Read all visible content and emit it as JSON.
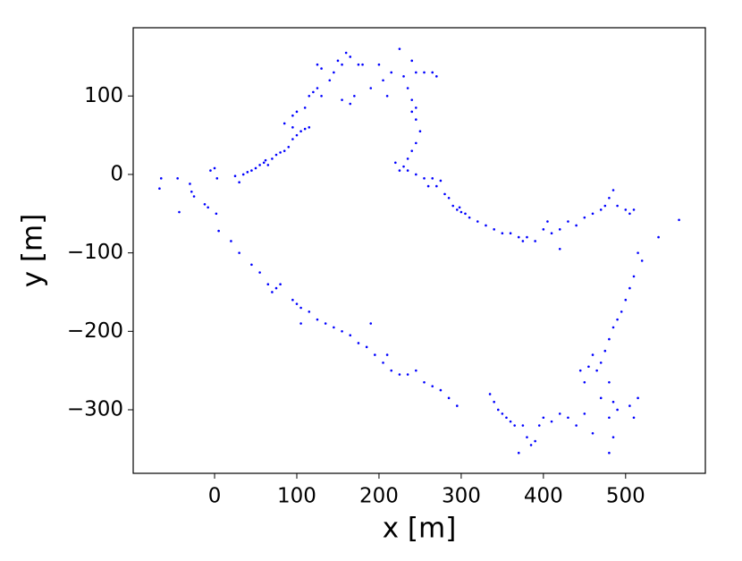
{
  "chart_data": {
    "type": "scatter",
    "x_label": "x [m]",
    "y_label": "y [m]",
    "xlim": [
      -99,
      597
    ],
    "ylim": [
      -381,
      187
    ],
    "xticks": [
      0,
      100,
      200,
      300,
      400,
      500
    ],
    "yticks": [
      {
        "value": -300,
        "label": "−300"
      },
      {
        "value": -200,
        "label": "−200"
      },
      {
        "value": -100,
        "label": "−100"
      },
      0,
      100
    ],
    "color": "#0000ff",
    "x": [
      -67,
      -65,
      -45,
      -43,
      -30,
      -28,
      -25,
      -12,
      -8,
      -5,
      2,
      5,
      3,
      0,
      25,
      30,
      35,
      40,
      45,
      50,
      55,
      60,
      62,
      65,
      70,
      75,
      80,
      85,
      90,
      95,
      100,
      105,
      110,
      115,
      95,
      85,
      95,
      100,
      110,
      115,
      120,
      125,
      130,
      125,
      130,
      140,
      145,
      150,
      155,
      160,
      165,
      170,
      165,
      155,
      175,
      180,
      190,
      200,
      205,
      210,
      215,
      225,
      230,
      235,
      240,
      245,
      255,
      265,
      270,
      240,
      245,
      240,
      245,
      250,
      245,
      240,
      235,
      230,
      220,
      225,
      235,
      245,
      255,
      260,
      265,
      270,
      275,
      280,
      285,
      290,
      295,
      298,
      300,
      305,
      310,
      320,
      330,
      340,
      350,
      360,
      370,
      375,
      380,
      390,
      400,
      405,
      410,
      420,
      420,
      430,
      440,
      450,
      460,
      470,
      475,
      480,
      485,
      490,
      500,
      505,
      510,
      540,
      565,
      520,
      515,
      510,
      505,
      500,
      495,
      490,
      485,
      480,
      475,
      470,
      465,
      460,
      455,
      450,
      445,
      480,
      485,
      490,
      480,
      485,
      480,
      510,
      515,
      505,
      470,
      460,
      450,
      440,
      430,
      420,
      410,
      400,
      395,
      390,
      385,
      380,
      375,
      370,
      365,
      360,
      355,
      350,
      345,
      340,
      335,
      20,
      30,
      45,
      55,
      65,
      70,
      75,
      80,
      95,
      100,
      105,
      115,
      125,
      135,
      145,
      155,
      165,
      175,
      185,
      195,
      205,
      215,
      225,
      235,
      245,
      255,
      265,
      275,
      285,
      295,
      190,
      105,
      210
    ],
    "y": [
      -18,
      -5,
      -5,
      -48,
      -12,
      -22,
      -28,
      -38,
      -42,
      5,
      -50,
      -72,
      -5,
      8,
      -2,
      -10,
      0,
      3,
      5,
      8,
      12,
      15,
      18,
      12,
      20,
      25,
      28,
      30,
      35,
      45,
      50,
      55,
      58,
      60,
      60,
      65,
      75,
      80,
      85,
      100,
      105,
      110,
      100,
      140,
      135,
      120,
      130,
      145,
      140,
      155,
      150,
      100,
      90,
      95,
      140,
      140,
      110,
      140,
      120,
      100,
      130,
      160,
      125,
      110,
      145,
      130,
      130,
      130,
      125,
      95,
      85,
      80,
      70,
      55,
      40,
      30,
      20,
      10,
      15,
      5,
      5,
      0,
      -5,
      -15,
      -5,
      -15,
      -8,
      -25,
      -30,
      -40,
      -45,
      -42,
      -48,
      -50,
      -55,
      -60,
      -65,
      -70,
      -75,
      -75,
      -80,
      -85,
      -80,
      -85,
      -70,
      -60,
      -75,
      -95,
      -70,
      -60,
      -65,
      -55,
      -50,
      -45,
      -40,
      -30,
      -20,
      -40,
      -45,
      -50,
      -45,
      -80,
      -58,
      -110,
      -100,
      -130,
      -145,
      -160,
      -175,
      -185,
      -195,
      -210,
      -225,
      -240,
      -250,
      -230,
      -245,
      -265,
      -250,
      -265,
      -290,
      -300,
      -310,
      -335,
      -355,
      -310,
      -285,
      -295,
      -285,
      -330,
      -305,
      -320,
      -310,
      -305,
      -315,
      -310,
      -320,
      -340,
      -345,
      -335,
      -320,
      -355,
      -320,
      -315,
      -310,
      -305,
      -300,
      -290,
      -280,
      -85,
      -100,
      -115,
      -125,
      -140,
      -150,
      -145,
      -140,
      -160,
      -165,
      -170,
      -175,
      -185,
      -190,
      -195,
      -200,
      -205,
      -215,
      -220,
      -230,
      -240,
      -250,
      -255,
      -255,
      -250,
      -265,
      -270,
      -275,
      -285,
      -295,
      -190,
      -190,
      -230
    ]
  }
}
